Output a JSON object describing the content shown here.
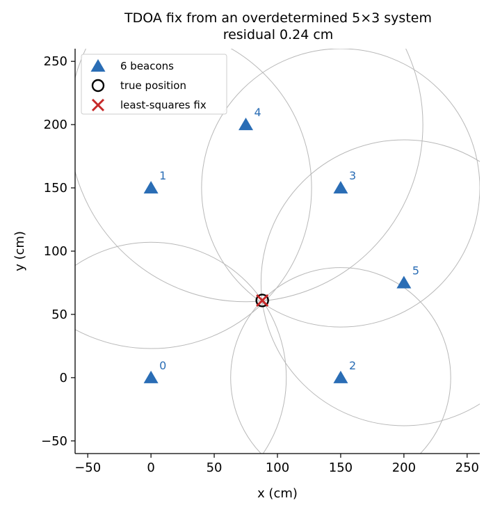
{
  "chart_data": {
    "type": "scatter",
    "title": "TDOA fix from an overdetermined 5×3 system",
    "subtitle": "residual 0.24 cm",
    "xlabel": "x (cm)",
    "ylabel": "y (cm)",
    "xlim": [
      -60,
      260
    ],
    "ylim": [
      -60,
      260
    ],
    "xticks": [
      -50,
      0,
      50,
      100,
      150,
      200,
      250
    ],
    "yticks": [
      -50,
      0,
      50,
      100,
      150,
      200,
      250
    ],
    "grid": false,
    "legend_position": "top-left",
    "colors": {
      "beacon": "#2a6db5",
      "true_position": "#000000",
      "fix": "#c62828",
      "circle": "#b8b8b8"
    },
    "beacons": [
      {
        "id": "0",
        "x": 0,
        "y": 0
      },
      {
        "id": "1",
        "x": 0,
        "y": 150
      },
      {
        "id": "2",
        "x": 150,
        "y": 0
      },
      {
        "id": "3",
        "x": 150,
        "y": 150
      },
      {
        "id": "4",
        "x": 75,
        "y": 200
      },
      {
        "id": "5",
        "x": 200,
        "y": 75
      }
    ],
    "true_position": {
      "x": 88,
      "y": 61
    },
    "fix": {
      "x": 88,
      "y": 61
    },
    "range_circles": [
      {
        "beacon": "0",
        "r": 107
      },
      {
        "beacon": "1",
        "r": 127
      },
      {
        "beacon": "2",
        "r": 87
      },
      {
        "beacon": "3",
        "r": 110
      },
      {
        "beacon": "4",
        "r": 140
      },
      {
        "beacon": "5",
        "r": 113
      }
    ],
    "legend": [
      {
        "label": "6 beacons",
        "marker": "triangle"
      },
      {
        "label": "true position",
        "marker": "circle"
      },
      {
        "label": "least-squares fix",
        "marker": "x"
      }
    ]
  }
}
